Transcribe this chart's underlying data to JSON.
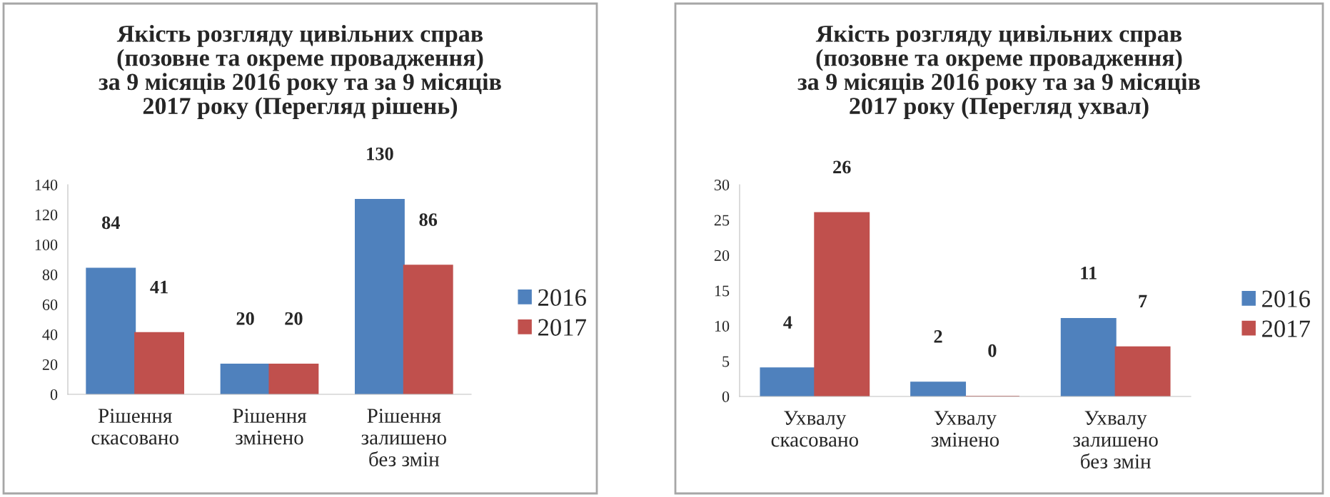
{
  "chart_data": [
    {
      "type": "bar",
      "title": "Якість розгляду цивільних справ\n(позовне та окреме провадження)\nза 9 місяців 2016 року та за 9 місяців\n2017 року (Перегляд рішень)",
      "categories": [
        "Рішення\nскасовано",
        "Рішення\nзмінено",
        "Рішення\nзалишено\nбез змін"
      ],
      "series": [
        {
          "name": "2016",
          "color": "#4f81bd",
          "values": [
            84,
            20,
            130
          ]
        },
        {
          "name": "2017",
          "color": "#c0504d",
          "values": [
            41,
            20,
            86
          ]
        }
      ],
      "ylim": [
        0,
        140
      ],
      "yticks": [
        0,
        20,
        40,
        60,
        80,
        100,
        120,
        140
      ],
      "data_labels": true,
      "legend": "right"
    },
    {
      "type": "bar",
      "title": "Якість розгляду цивільних справ\n(позовне та окреме провадження)\nза 9 місяців 2016 року та за 9 місяців\n2017 року (Перегляд ухвал)",
      "categories": [
        "Ухвалу\nскасовано",
        "Ухвалу\nзмінено",
        "Ухвалу\nзалишено\nбез змін"
      ],
      "series": [
        {
          "name": "2016",
          "color": "#4f81bd",
          "values": [
            4,
            2,
            11
          ]
        },
        {
          "name": "2017",
          "color": "#c0504d",
          "values": [
            26,
            0,
            7
          ]
        }
      ],
      "ylim": [
        0,
        30
      ],
      "yticks": [
        0,
        5,
        10,
        15,
        20,
        25,
        30
      ],
      "data_labels": true,
      "legend": "right"
    }
  ]
}
